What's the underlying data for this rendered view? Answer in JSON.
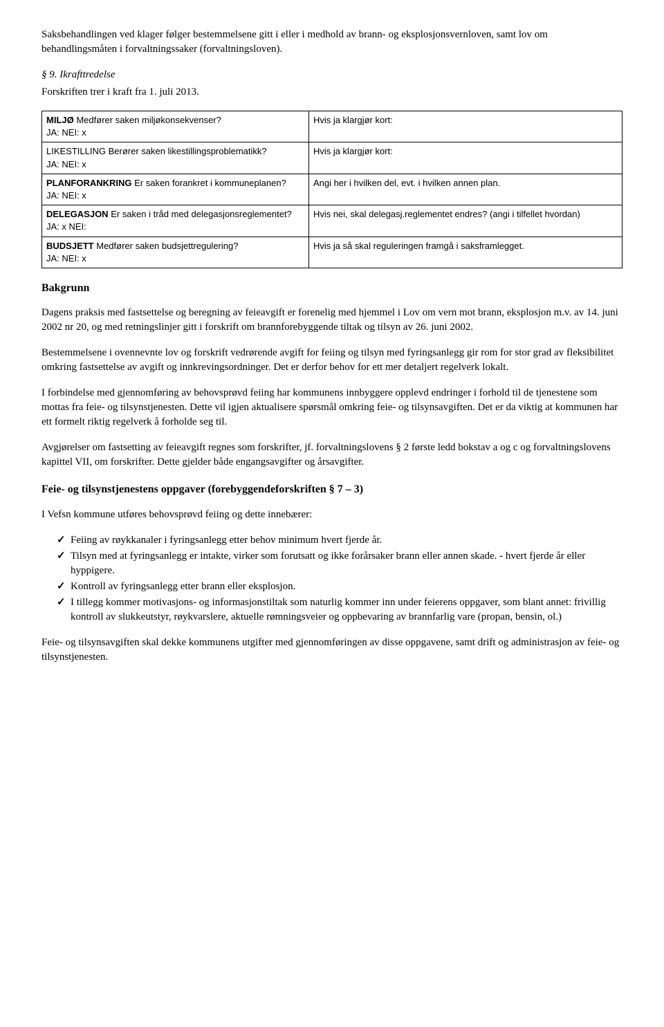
{
  "paragraphs": {
    "intro": "Saksbehandlingen ved klager følger bestemmelsene gitt i eller i medhold av brann- og eksplosjonsvernloven, samt lov om behandlingsmåten i forvaltningssaker (forvaltningsloven).",
    "section9_title": "§ 9. Ikrafttredelse",
    "section9_body": "Forskriften trer i kraft fra 1. juli 2013."
  },
  "table": {
    "rows": [
      {
        "left_lines": [
          {
            "bold_prefix": "MILJØ",
            "text": "  Medfører saken miljøkonsekvenser?"
          },
          {
            "text": "JA:                    NEI: x"
          }
        ],
        "right": "Hvis ja klargjør kort:"
      },
      {
        "left_lines": [
          {
            "text": "LIKESTILLING Berører saken likestillingsproblematikk?"
          },
          {
            "text": "JA:                    NEI: x"
          }
        ],
        "right": "Hvis ja klargjør kort:"
      },
      {
        "left_lines": [
          {
            "bold_prefix": "PLANFORANKRING",
            "text": "   Er saken forankret i kommuneplanen?"
          },
          {
            "text": "JA:                    NEI: x"
          }
        ],
        "right": "Angi  her  i hvilken del,  evt. i hvilken annen plan."
      },
      {
        "left_lines": [
          {
            "bold_prefix": "DELEGASJON",
            "text": " Er saken i tråd  med delegasjonsreglementet?"
          },
          {
            "text": "JA:    x              NEI:"
          }
        ],
        "right": "Hvis nei, skal delegasj.reglementet endres? (angi i tilfellet hvordan)"
      },
      {
        "left_lines": [
          {
            "bold_prefix": "BUDSJETT",
            "text": " Medfører saken budsjettregulering?"
          },
          {
            "text": "JA:                    NEI: x"
          }
        ],
        "right": "Hvis ja så skal reguleringen framgå i saksframlegget."
      }
    ]
  },
  "headings": {
    "bakgrunn": "Bakgrunn",
    "feie_heading": "Feie- og tilsynstjenestens oppgaver (forebyggendeforskriften § 7 – 3)"
  },
  "body": {
    "p1": "Dagens praksis med fastsettelse og beregning av feieavgift er forenelig med hjemmel i Lov om vern mot brann, eksplosjon m.v. av 14. juni 2002 nr 20, og med retningslinjer gitt i forskrift om brannforebyggende tiltak og tilsyn av 26. juni 2002.",
    "p2": "Bestemmelsene i ovennevnte lov og forskrift vedrørende avgift for feiing og tilsyn med fyringsanlegg gir rom for stor grad av fleksibilitet omkring fastsettelse av avgift og innkrevingsordninger. Det er derfor behov for ett mer detaljert regelverk lokalt.",
    "p3": "I forbindelse med gjennomføring av behovsprøvd feiing har kommunens innbyggere opplevd endringer i forhold til de tjenestene som mottas fra feie- og tilsynstjenesten. Dette vil igjen aktualisere spørsmål omkring feie- og tilsynsavgiften. Det er da viktig at kommunen har ett formelt riktig regelverk å forholde seg til.",
    "p4": "Avgjørelser om fastsetting av feieavgift regnes som forskrifter, jf. forvaltningslovens § 2 første ledd bokstav a og c og forvaltningslovens kapittel VII, om forskrifter. Dette gjelder både engangsavgifter og årsavgifter.",
    "p5": "I Vefsn kommune utføres behovsprøvd feiing og dette innebærer:",
    "p6": "Feie- og tilsynsavgiften skal dekke kommunens utgifter med gjennomføringen av disse oppgavene, samt drift og administrasjon av feie- og tilsynstjenesten."
  },
  "checklist": [
    "Feiing av røykkanaler i fyringsanlegg etter behov minimum hvert fjerde år.",
    "Tilsyn med at fyringsanlegg er intakte, virker som forutsatt og ikke forårsaker brann eller annen skade. - hvert fjerde år eller hyppigere.",
    "Kontroll av fyringsanlegg etter brann eller eksplosjon.",
    "I tillegg kommer motivasjons- og informasjonstiltak som naturlig kommer inn under feierens oppgaver, som blant annet: frivillig kontroll av slukkeutstyr, røykvarslere, aktuelle rømningsveier og oppbevaring av brannfarlig vare (propan, bensin, ol.)"
  ]
}
